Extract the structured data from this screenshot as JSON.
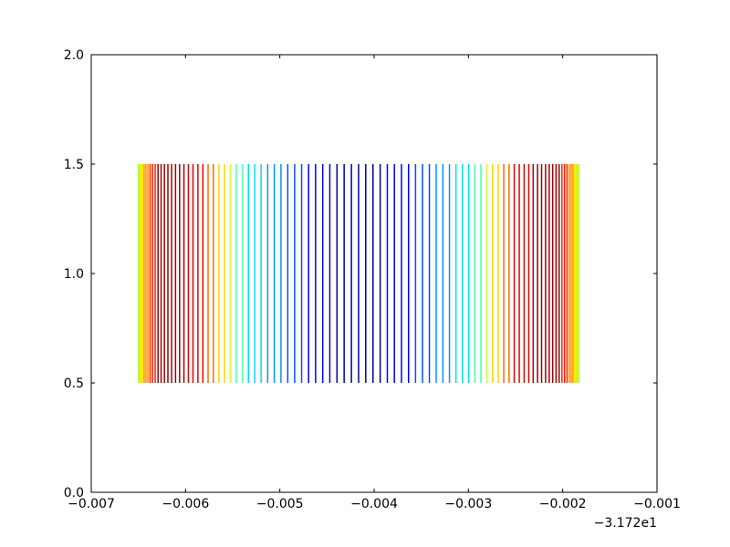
{
  "chart_data": {
    "type": "eventplot",
    "x": [
      -0.0065,
      -0.006499,
      -0.006495,
      -0.006489,
      -0.00648,
      -0.006469,
      -0.006455,
      -0.006439,
      -0.00642,
      -0.006399,
      -0.006376,
      -0.00635,
      -0.006322,
      -0.006292,
      -0.006259,
      -0.006224,
      -0.006187,
      -0.006148,
      -0.006106,
      -0.006063,
      -0.006017,
      -0.00597,
      -0.005921,
      -0.005869,
      -0.005816,
      -0.005761,
      -0.005705,
      -0.005646,
      -0.005586,
      -0.005525,
      -0.005462,
      -0.005398,
      -0.005333,
      -0.005266,
      -0.005198,
      -0.005129,
      -0.005059,
      -0.004988,
      -0.004916,
      -0.004843,
      -0.004769,
      -0.004695,
      -0.004621,
      -0.004545,
      -0.00447,
      -0.004394,
      -0.004318,
      -0.004241,
      -0.004165,
      -0.004089,
      -0.004012,
      -0.003936,
      -0.00386,
      -0.003785,
      -0.00371,
      -0.003635,
      -0.003561,
      -0.003487,
      -0.003414,
      -0.003342,
      -0.003271,
      -0.003201,
      -0.003132,
      -0.003064,
      -0.002997,
      -0.002932,
      -0.002868,
      -0.002805,
      -0.002744,
      -0.002684,
      -0.002625,
      -0.002569,
      -0.002514,
      -0.002461,
      -0.002409,
      -0.00236,
      -0.002313,
      -0.002267,
      -0.002224,
      -0.002182,
      -0.002143,
      -0.002106,
      -0.002071,
      -0.002038,
      -0.002008,
      -0.00198,
      -0.001954,
      -0.00193,
      -0.00191,
      -0.001891,
      -0.001875,
      -0.001861,
      -0.00185,
      -0.001841,
      -0.001835,
      -0.001831,
      -0.00183
    ],
    "colors": [
      "#adff4a",
      "#adff4a",
      "#adff4a",
      "#adff4a",
      "#ffe600",
      "#ffe600",
      "#ffe600",
      "#ff9000",
      "#ff9000",
      "#ff9000",
      "#ff2200",
      "#ff2200",
      "#ff2200",
      "#a00000",
      "#a00000",
      "#a00000",
      "#a00000",
      "#a00000",
      "#a00000",
      "#a00000",
      "#a00000",
      "#e40000",
      "#e40000",
      "#e40000",
      "#e40000",
      "#ff6a00",
      "#ff6a00",
      "#ffd400",
      "#ffd400",
      "#c8ff30",
      "#4affb0",
      "#4affb0",
      "#00dcff",
      "#00dcff",
      "#00dcff",
      "#0094ff",
      "#0094ff",
      "#0094ff",
      "#0050ff",
      "#0050ff",
      "#0050ff",
      "#0000f8",
      "#0000f8",
      "#0000f8",
      "#0000f8",
      "#0000a0",
      "#0000a0",
      "#0000a0",
      "#0000a0",
      "#0000a0",
      "#0000a0",
      "#0000a0",
      "#0000f8",
      "#0000f8",
      "#0000f8",
      "#0000f8",
      "#0050ff",
      "#0050ff",
      "#0050ff",
      "#0094ff",
      "#0094ff",
      "#0094ff",
      "#00dcff",
      "#00dcff",
      "#00dcff",
      "#4affb0",
      "#4affb0",
      "#c8ff30",
      "#ffd400",
      "#ffd400",
      "#ff6a00",
      "#ff6a00",
      "#e40000",
      "#e40000",
      "#e40000",
      "#e40000",
      "#a00000",
      "#a00000",
      "#a00000",
      "#a00000",
      "#a00000",
      "#a00000",
      "#a00000",
      "#a00000",
      "#ff2200",
      "#ff2200",
      "#ff2200",
      "#ff9000",
      "#ff9000",
      "#ff9000",
      "#ffe600",
      "#ffe600",
      "#ffe600",
      "#adff4a",
      "#adff4a",
      "#adff4a",
      "#adff4a"
    ],
    "ymin": 0.5,
    "ymax": 1.5,
    "xlim": [
      -0.007,
      -0.001
    ],
    "xticks": [
      {
        "value": -0.007,
        "label": "−0.007"
      },
      {
        "value": -0.006,
        "label": "−0.006"
      },
      {
        "value": -0.005,
        "label": "−0.005"
      },
      {
        "value": -0.004,
        "label": "−0.004"
      },
      {
        "value": -0.003,
        "label": "−0.003"
      },
      {
        "value": -0.002,
        "label": "−0.002"
      },
      {
        "value": -0.001,
        "label": "−0.001"
      }
    ],
    "x_offset_label": "−3.172e1",
    "ylim": [
      0,
      2
    ],
    "yticks": [
      {
        "value": 0,
        "label": "0.0"
      },
      {
        "value": 0.5,
        "label": "0.5"
      },
      {
        "value": 1,
        "label": "1.0"
      },
      {
        "value": 1.5,
        "label": "1.5"
      },
      {
        "value": 2,
        "label": "2.0"
      }
    ]
  }
}
